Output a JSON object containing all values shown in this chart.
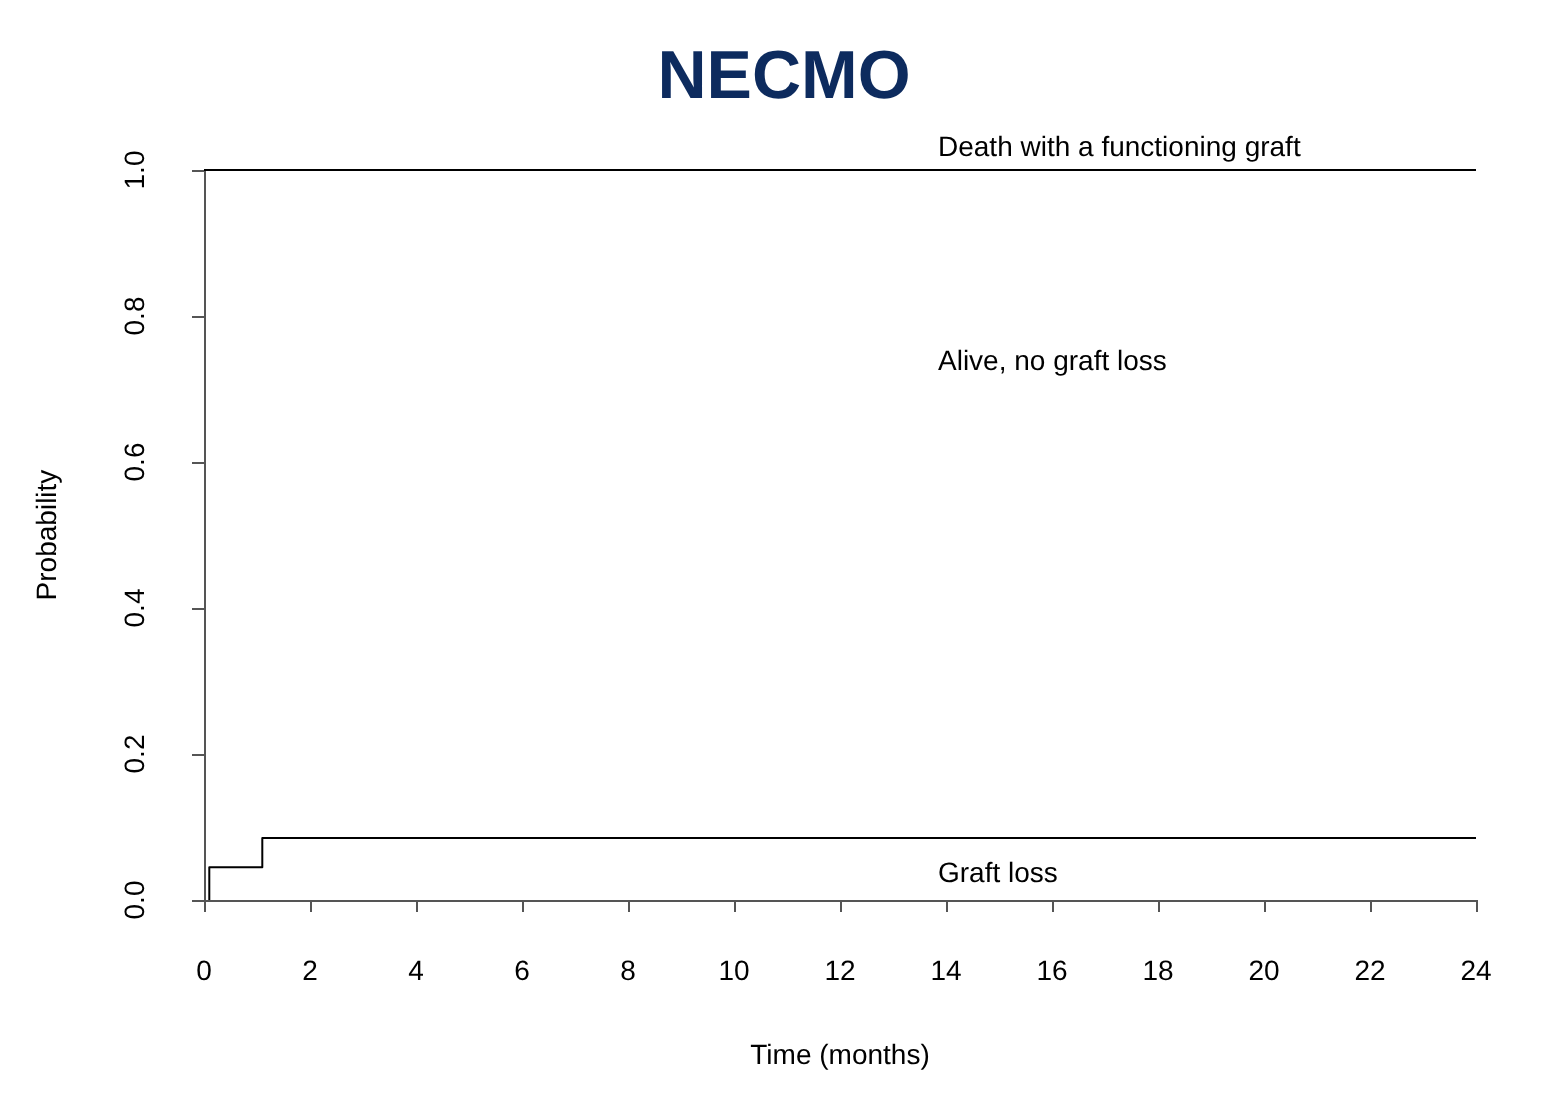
{
  "chart_data": {
    "type": "step",
    "title": "NECMO",
    "xlabel": "Time (months)",
    "ylabel": "Probability",
    "series": [
      {
        "color": "#000000",
        "x": [
          0,
          24
        ],
        "values": [
          1,
          1
        ]
      },
      {
        "color": "#000000",
        "x": [
          0.1,
          0.1,
          1.1,
          24
        ],
        "values": [
          0,
          0.045,
          0.085,
          0.085
        ]
      }
    ],
    "xlim": [
      0,
      24
    ],
    "xticks": [
      0,
      2,
      4,
      6,
      8,
      10,
      12,
      14,
      16,
      18,
      20,
      22,
      24
    ],
    "ylim": [
      0,
      1
    ],
    "yticks": [
      {
        "value": 0,
        "label": "0.0"
      },
      0.2,
      0.4,
      0.6,
      0.8,
      {
        "value": 1,
        "label": "1.0"
      }
    ],
    "annotations": [
      "Death with a functioning graft",
      "Alive, no graft loss",
      "Graft loss"
    ],
    "grid": false,
    "marker": "none",
    "line_style": "solid"
  }
}
